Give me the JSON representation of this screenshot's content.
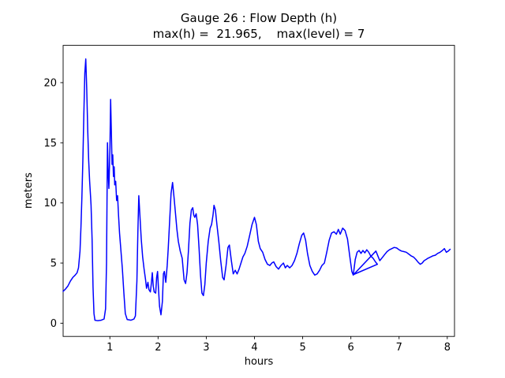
{
  "chart_data": {
    "type": "line",
    "title": "Gauge 26 : Flow Depth (h)",
    "subtitle": "max(h) =  21.965,    max(level) = 7",
    "xlabel": "hours",
    "ylabel": "meters",
    "xlim": [
      0.03,
      8.15
    ],
    "ylim": [
      -1.1,
      23.1
    ],
    "xticks": [
      1,
      2,
      3,
      4,
      5,
      6,
      7,
      8
    ],
    "yticks": [
      0,
      5,
      10,
      15,
      20
    ],
    "grid": false,
    "legend": null,
    "line_color": "#0000ff",
    "axis_color": "#000000",
    "background_color": "#ffffff",
    "max_h": 21.965,
    "max_level": 7,
    "series": [
      {
        "name": "flow-depth-h",
        "points": [
          [
            0.03,
            2.65
          ],
          [
            0.08,
            2.85
          ],
          [
            0.13,
            3.1
          ],
          [
            0.18,
            3.5
          ],
          [
            0.23,
            3.8
          ],
          [
            0.28,
            4.0
          ],
          [
            0.32,
            4.2
          ],
          [
            0.35,
            4.6
          ],
          [
            0.38,
            6.0
          ],
          [
            0.4,
            8.0
          ],
          [
            0.42,
            10.5
          ],
          [
            0.44,
            13.5
          ],
          [
            0.46,
            17.5
          ],
          [
            0.48,
            20.8
          ],
          [
            0.5,
            21.965
          ],
          [
            0.52,
            19.5
          ],
          [
            0.54,
            16.0
          ],
          [
            0.56,
            13.5
          ],
          [
            0.58,
            11.8
          ],
          [
            0.6,
            10.5
          ],
          [
            0.61,
            9.8
          ],
          [
            0.63,
            7.0
          ],
          [
            0.65,
            3.0
          ],
          [
            0.67,
            0.8
          ],
          [
            0.69,
            0.25
          ],
          [
            0.75,
            0.2
          ],
          [
            0.82,
            0.25
          ],
          [
            0.88,
            0.35
          ],
          [
            0.91,
            1.2
          ],
          [
            0.93,
            5.0
          ],
          [
            0.95,
            15.0
          ],
          [
            0.965,
            12.5
          ],
          [
            0.98,
            11.2
          ],
          [
            1.0,
            14.5
          ],
          [
            1.015,
            18.6
          ],
          [
            1.03,
            16.0
          ],
          [
            1.045,
            13.2
          ],
          [
            1.06,
            14.0
          ],
          [
            1.075,
            12.2
          ],
          [
            1.09,
            13.0
          ],
          [
            1.1,
            11.5
          ],
          [
            1.12,
            11.8
          ],
          [
            1.14,
            10.2
          ],
          [
            1.16,
            10.6
          ],
          [
            1.18,
            9.0
          ],
          [
            1.2,
            7.5
          ],
          [
            1.23,
            6.0
          ],
          [
            1.26,
            4.5
          ],
          [
            1.29,
            2.5
          ],
          [
            1.32,
            0.8
          ],
          [
            1.36,
            0.3
          ],
          [
            1.44,
            0.25
          ],
          [
            1.5,
            0.35
          ],
          [
            1.53,
            0.6
          ],
          [
            1.56,
            3.5
          ],
          [
            1.58,
            7.5
          ],
          [
            1.6,
            10.6
          ],
          [
            1.62,
            9.2
          ],
          [
            1.65,
            7.0
          ],
          [
            1.68,
            5.5
          ],
          [
            1.71,
            4.5
          ],
          [
            1.74,
            3.6
          ],
          [
            1.76,
            2.9
          ],
          [
            1.79,
            3.4
          ],
          [
            1.81,
            2.8
          ],
          [
            1.84,
            2.6
          ],
          [
            1.86,
            3.3
          ],
          [
            1.88,
            4.2
          ],
          [
            1.9,
            3.1
          ],
          [
            1.92,
            2.6
          ],
          [
            1.95,
            2.5
          ],
          [
            1.97,
            3.8
          ],
          [
            1.99,
            4.3
          ],
          [
            2.01,
            2.8
          ],
          [
            2.03,
            1.4
          ],
          [
            2.06,
            0.7
          ],
          [
            2.09,
            1.8
          ],
          [
            2.11,
            4.1
          ],
          [
            2.13,
            4.3
          ],
          [
            2.16,
            3.4
          ],
          [
            2.19,
            4.8
          ],
          [
            2.21,
            6.2
          ],
          [
            2.24,
            8.5
          ],
          [
            2.27,
            10.8
          ],
          [
            2.3,
            11.7
          ],
          [
            2.33,
            10.5
          ],
          [
            2.36,
            9.2
          ],
          [
            2.39,
            7.8
          ],
          [
            2.42,
            6.8
          ],
          [
            2.46,
            6.0
          ],
          [
            2.5,
            5.4
          ],
          [
            2.54,
            3.6
          ],
          [
            2.57,
            3.3
          ],
          [
            2.6,
            4.2
          ],
          [
            2.63,
            6.0
          ],
          [
            2.66,
            8.3
          ],
          [
            2.69,
            9.4
          ],
          [
            2.72,
            9.6
          ],
          [
            2.74,
            9.0
          ],
          [
            2.76,
            8.8
          ],
          [
            2.79,
            9.1
          ],
          [
            2.82,
            8.2
          ],
          [
            2.85,
            6.2
          ],
          [
            2.88,
            4.0
          ],
          [
            2.91,
            2.5
          ],
          [
            2.94,
            2.3
          ],
          [
            2.97,
            3.2
          ],
          [
            3.0,
            5.0
          ],
          [
            3.04,
            6.8
          ],
          [
            3.08,
            7.9
          ],
          [
            3.11,
            8.2
          ],
          [
            3.14,
            9.0
          ],
          [
            3.16,
            9.8
          ],
          [
            3.19,
            9.4
          ],
          [
            3.22,
            8.2
          ],
          [
            3.26,
            6.8
          ],
          [
            3.3,
            5.2
          ],
          [
            3.34,
            3.8
          ],
          [
            3.37,
            3.6
          ],
          [
            3.41,
            4.8
          ],
          [
            3.45,
            6.3
          ],
          [
            3.48,
            6.5
          ],
          [
            3.52,
            5.2
          ],
          [
            3.56,
            4.1
          ],
          [
            3.6,
            4.4
          ],
          [
            3.64,
            4.1
          ],
          [
            3.68,
            4.5
          ],
          [
            3.72,
            5.0
          ],
          [
            3.76,
            5.5
          ],
          [
            3.8,
            5.8
          ],
          [
            3.85,
            6.4
          ],
          [
            3.9,
            7.3
          ],
          [
            3.95,
            8.2
          ],
          [
            4.0,
            8.8
          ],
          [
            4.04,
            8.2
          ],
          [
            4.08,
            6.8
          ],
          [
            4.12,
            6.2
          ],
          [
            4.17,
            5.9
          ],
          [
            4.22,
            5.3
          ],
          [
            4.27,
            4.9
          ],
          [
            4.32,
            4.8
          ],
          [
            4.36,
            5.0
          ],
          [
            4.4,
            5.1
          ],
          [
            4.45,
            4.7
          ],
          [
            4.5,
            4.5
          ],
          [
            4.55,
            4.8
          ],
          [
            4.6,
            5.0
          ],
          [
            4.64,
            4.6
          ],
          [
            4.68,
            4.8
          ],
          [
            4.73,
            4.6
          ],
          [
            4.78,
            4.8
          ],
          [
            4.83,
            5.2
          ],
          [
            4.88,
            5.8
          ],
          [
            4.93,
            6.6
          ],
          [
            4.98,
            7.3
          ],
          [
            5.02,
            7.5
          ],
          [
            5.06,
            6.9
          ],
          [
            5.1,
            5.8
          ],
          [
            5.15,
            4.8
          ],
          [
            5.2,
            4.3
          ],
          [
            5.25,
            4.0
          ],
          [
            5.3,
            4.1
          ],
          [
            5.35,
            4.4
          ],
          [
            5.4,
            4.8
          ],
          [
            5.45,
            5.0
          ],
          [
            5.5,
            5.9
          ],
          [
            5.55,
            6.9
          ],
          [
            5.6,
            7.5
          ],
          [
            5.65,
            7.6
          ],
          [
            5.7,
            7.4
          ],
          [
            5.74,
            7.8
          ],
          [
            5.78,
            7.4
          ],
          [
            5.83,
            7.9
          ],
          [
            5.88,
            7.7
          ],
          [
            5.93,
            7.0
          ],
          [
            5.98,
            5.5
          ],
          [
            6.02,
            4.3
          ],
          [
            6.05,
            4.0
          ],
          [
            6.09,
            5.3
          ],
          [
            6.13,
            5.9
          ],
          [
            6.17,
            6.05
          ],
          [
            6.21,
            5.8
          ],
          [
            6.25,
            6.05
          ],
          [
            6.29,
            5.85
          ],
          [
            6.33,
            6.1
          ],
          [
            6.37,
            5.9
          ],
          [
            6.41,
            5.6
          ],
          [
            6.46,
            5.4
          ],
          [
            6.51,
            5.1
          ],
          [
            6.55,
            4.9
          ],
          [
            6.06,
            4.05
          ],
          [
            6.52,
            6.0
          ],
          [
            6.6,
            5.2
          ],
          [
            6.65,
            5.45
          ],
          [
            6.7,
            5.7
          ],
          [
            6.75,
            5.95
          ],
          [
            6.8,
            6.1
          ],
          [
            6.85,
            6.2
          ],
          [
            6.9,
            6.3
          ],
          [
            6.95,
            6.25
          ],
          [
            7.0,
            6.1
          ],
          [
            7.05,
            6.0
          ],
          [
            7.1,
            5.95
          ],
          [
            7.15,
            5.9
          ],
          [
            7.2,
            5.75
          ],
          [
            7.25,
            5.6
          ],
          [
            7.3,
            5.5
          ],
          [
            7.35,
            5.3
          ],
          [
            7.4,
            5.05
          ],
          [
            7.44,
            4.9
          ],
          [
            7.48,
            5.0
          ],
          [
            7.52,
            5.2
          ],
          [
            7.56,
            5.3
          ],
          [
            7.6,
            5.4
          ],
          [
            7.65,
            5.5
          ],
          [
            7.7,
            5.6
          ],
          [
            7.75,
            5.65
          ],
          [
            7.8,
            5.8
          ],
          [
            7.85,
            5.9
          ],
          [
            7.9,
            6.05
          ],
          [
            7.94,
            6.2
          ],
          [
            7.98,
            5.9
          ],
          [
            8.02,
            6.0
          ],
          [
            8.06,
            6.15
          ]
        ]
      }
    ]
  }
}
